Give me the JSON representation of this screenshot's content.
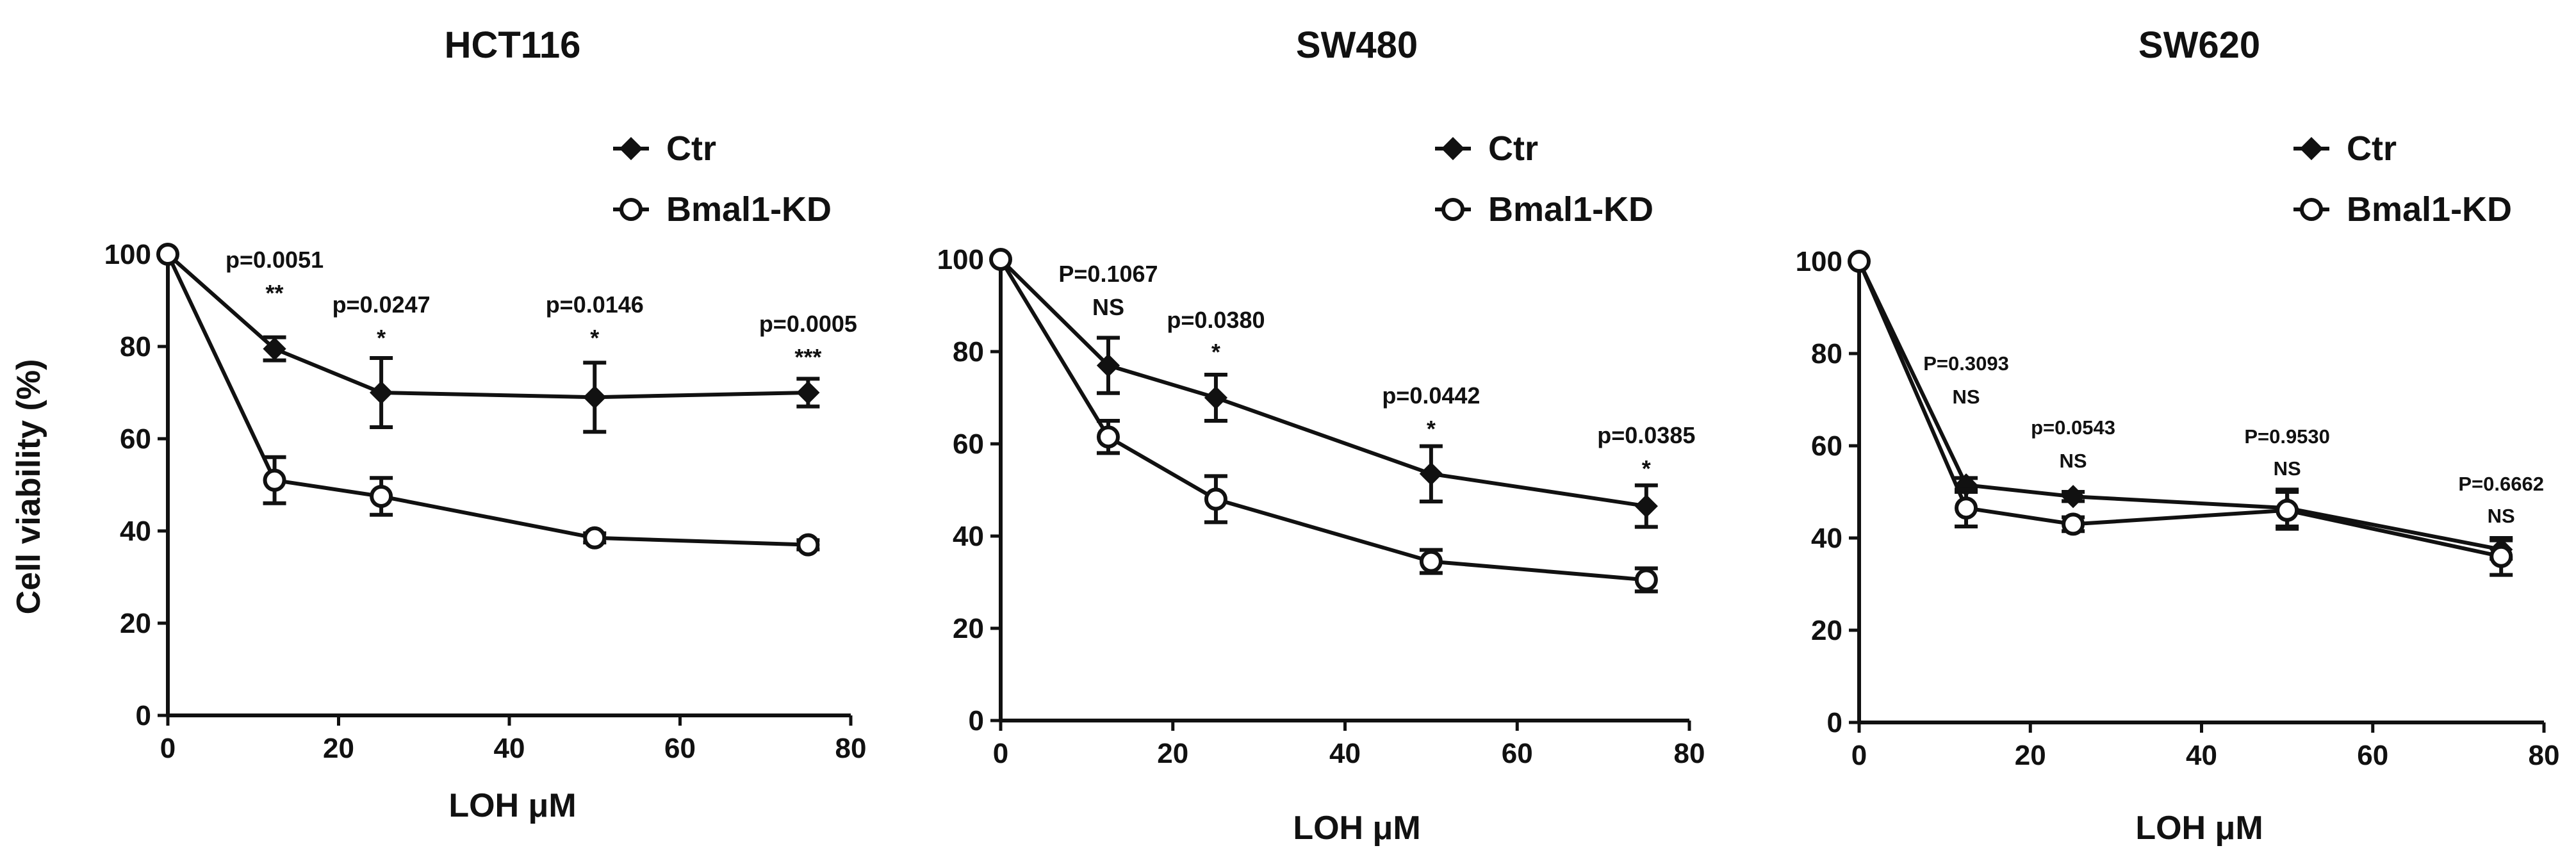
{
  "chart_data": [
    {
      "type": "line",
      "title": "HCT116",
      "xlabel": "LOH μM",
      "ylabel": "Cell viability (%)",
      "xlim": [
        0,
        80
      ],
      "ylim": [
        0,
        100
      ],
      "xticks": [
        0,
        20,
        40,
        60,
        80
      ],
      "yticks": [
        0,
        20,
        40,
        60,
        80,
        100
      ],
      "legend": [
        "Ctr",
        "Bmal1-KD"
      ],
      "x": [
        0,
        12.5,
        25,
        50,
        75
      ],
      "series": [
        {
          "name": "Ctr",
          "marker": "filled-diamond",
          "values": [
            100,
            79.5,
            70,
            69,
            70
          ],
          "errors": [
            0,
            2.5,
            7.5,
            7.5,
            3
          ]
        },
        {
          "name": "Bmal1-KD",
          "marker": "open-circle",
          "values": [
            100,
            51,
            47.5,
            38.5,
            37
          ],
          "errors": [
            0,
            5,
            4,
            1,
            1
          ]
        }
      ],
      "annotations": [
        {
          "x": 12.5,
          "p": "p=0.0051",
          "sig": "**"
        },
        {
          "x": 25,
          "p": "p=0.0247",
          "sig": "*"
        },
        {
          "x": 50,
          "p": "p=0.0146",
          "sig": "*"
        },
        {
          "x": 75,
          "p": "p=0.0005",
          "sig": "***"
        }
      ]
    },
    {
      "type": "line",
      "title": "SW480",
      "xlabel": "LOH μM",
      "ylabel": "",
      "xlim": [
        0,
        80
      ],
      "ylim": [
        0,
        100
      ],
      "xticks": [
        0,
        20,
        40,
        60,
        80
      ],
      "yticks": [
        0,
        20,
        40,
        60,
        80,
        100
      ],
      "legend": [
        "Ctr",
        "Bmal1-KD"
      ],
      "x": [
        0,
        12.5,
        25,
        50,
        75
      ],
      "series": [
        {
          "name": "Ctr",
          "marker": "filled-diamond",
          "values": [
            100,
            77,
            70,
            53.5,
            46.5
          ],
          "errors": [
            0,
            6,
            5,
            6,
            4.5
          ]
        },
        {
          "name": "Bmal1-KD",
          "marker": "open-circle",
          "values": [
            100,
            61.5,
            48,
            34.5,
            30.5
          ],
          "errors": [
            0,
            3.5,
            5,
            2.5,
            2.5
          ]
        }
      ],
      "annotations": [
        {
          "x": 12.5,
          "p": "P=0.1067",
          "sig": "NS"
        },
        {
          "x": 25,
          "p": "p=0.0380",
          "sig": "*"
        },
        {
          "x": 50,
          "p": "p=0.0442",
          "sig": "*"
        },
        {
          "x": 75,
          "p": "p=0.0385",
          "sig": "*"
        }
      ]
    },
    {
      "type": "line",
      "title": "SW620",
      "xlabel": "LOH μM",
      "ylabel": "",
      "xlim": [
        0,
        80
      ],
      "ylim": [
        0,
        100
      ],
      "xticks": [
        0,
        20,
        40,
        60,
        80
      ],
      "yticks": [
        0,
        20,
        40,
        60,
        80,
        100
      ],
      "legend": [
        "Ctr",
        "Bmal1-KD"
      ],
      "x": [
        0,
        12.5,
        25,
        50,
        75
      ],
      "series": [
        {
          "name": "Ctr",
          "marker": "filled-diamond",
          "values": [
            100,
            51.5,
            49,
            46.5,
            37.5
          ],
          "errors": [
            0,
            1.5,
            1,
            4,
            2
          ]
        },
        {
          "name": "Bmal1-KD",
          "marker": "open-circle",
          "values": [
            100,
            46.5,
            43,
            46,
            36
          ],
          "errors": [
            0,
            4,
            1.5,
            4,
            4
          ]
        }
      ],
      "annotations": [
        {
          "x": 12.5,
          "p": "P=0.3093",
          "sig": "NS"
        },
        {
          "x": 25,
          "p": "p=0.0543",
          "sig": "NS"
        },
        {
          "x": 50,
          "p": "P=0.9530",
          "sig": "NS"
        },
        {
          "x": 75,
          "p": "P=0.6662",
          "sig": "NS"
        }
      ]
    }
  ]
}
